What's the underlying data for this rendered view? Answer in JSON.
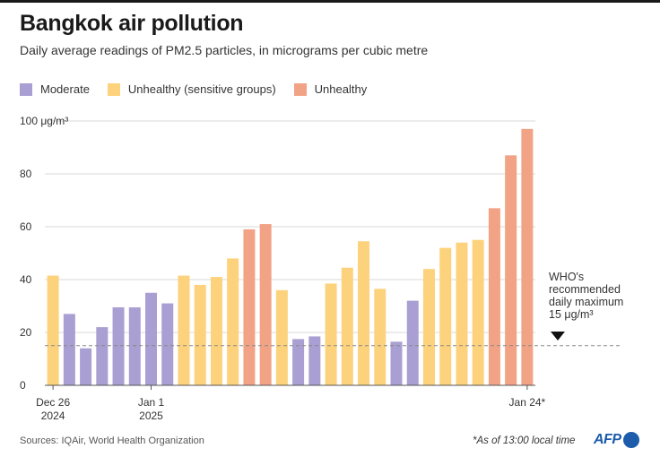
{
  "title": "Bangkok air pollution",
  "subtitle": "Daily average readings of PM2.5 particles, in micrograms per cubic metre",
  "legend": [
    {
      "label": "Moderate",
      "color": "#a99fd2"
    },
    {
      "label": "Unhealthy (sensitive groups)",
      "color": "#fdd27c"
    },
    {
      "label": "Unhealthy",
      "color": "#f2a386"
    }
  ],
  "chart_data": {
    "type": "bar",
    "title": "Bangkok air pollution",
    "ylabel": "μg/m³",
    "ylim": [
      0,
      100
    ],
    "yticks": [
      0,
      20,
      40,
      60,
      80,
      100
    ],
    "ytick_labels": [
      "0",
      "20",
      "40",
      "60",
      "80",
      "100 μg/m³"
    ],
    "x_tick_labels": [
      {
        "index": 0,
        "lines": [
          "Dec 26",
          "2024"
        ]
      },
      {
        "index": 6,
        "lines": [
          "Jan 1",
          "2025"
        ]
      },
      {
        "index": 29,
        "lines": [
          "Jan 24*"
        ]
      }
    ],
    "categories": [
      "Dec 26",
      "Dec 27",
      "Dec 28",
      "Dec 29",
      "Dec 30",
      "Dec 31",
      "Jan 1",
      "Jan 2",
      "Jan 3",
      "Jan 4",
      "Jan 5",
      "Jan 6",
      "Jan 7",
      "Jan 8",
      "Jan 9",
      "Jan 10",
      "Jan 11",
      "Jan 12",
      "Jan 13",
      "Jan 14",
      "Jan 15",
      "Jan 16",
      "Jan 17",
      "Jan 18",
      "Jan 19",
      "Jan 20",
      "Jan 21",
      "Jan 22",
      "Jan 23",
      "Jan 24"
    ],
    "values": [
      41.5,
      27,
      14,
      22,
      29.5,
      29.5,
      35,
      31,
      41.5,
      38,
      41,
      48,
      59,
      61,
      36,
      17.5,
      18.5,
      38.5,
      44.5,
      54.5,
      36.5,
      16.5,
      32,
      44,
      52,
      54,
      55,
      67,
      87,
      97
    ],
    "categories_level": [
      "Unhealthy (sensitive groups)",
      "Moderate",
      "Moderate",
      "Moderate",
      "Moderate",
      "Moderate",
      "Moderate",
      "Moderate",
      "Unhealthy (sensitive groups)",
      "Unhealthy (sensitive groups)",
      "Unhealthy (sensitive groups)",
      "Unhealthy (sensitive groups)",
      "Unhealthy",
      "Unhealthy",
      "Unhealthy (sensitive groups)",
      "Moderate",
      "Moderate",
      "Unhealthy (sensitive groups)",
      "Unhealthy (sensitive groups)",
      "Unhealthy (sensitive groups)",
      "Unhealthy (sensitive groups)",
      "Moderate",
      "Moderate",
      "Unhealthy (sensitive groups)",
      "Unhealthy (sensitive groups)",
      "Unhealthy (sensitive groups)",
      "Unhealthy (sensitive groups)",
      "Unhealthy",
      "Unhealthy",
      "Unhealthy"
    ],
    "reference_line": {
      "value": 15,
      "label_lines": [
        "WHO's",
        "recommended",
        "daily maximum",
        "15 μg/m³"
      ]
    }
  },
  "footer": {
    "sources": "Sources: IQAir, World Health Organization",
    "note": "*As of 13:00 local time",
    "logo": "AFP"
  }
}
